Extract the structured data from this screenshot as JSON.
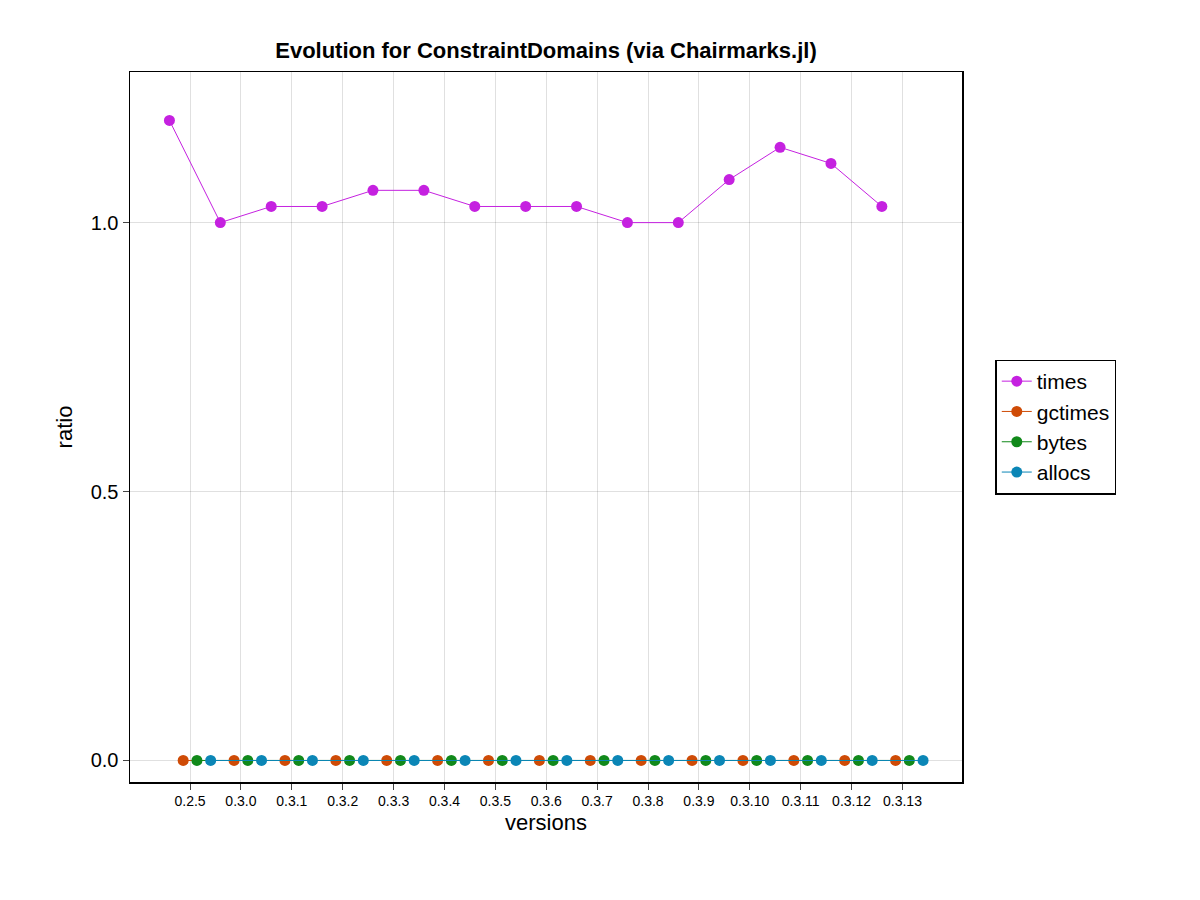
{
  "chart_data": {
    "type": "line",
    "title": "Evolution for ConstraintDomains (via Chairmarks.jl)",
    "x_label": "versions",
    "y_label": "ratio",
    "categories": [
      "0.2.5",
      "0.3.0",
      "0.3.1",
      "0.3.2",
      "0.3.3",
      "0.3.4",
      "0.3.5",
      "0.3.6",
      "0.3.7",
      "0.3.8",
      "0.3.9",
      "0.3.10",
      "0.3.11",
      "0.3.12",
      "0.3.13"
    ],
    "series": [
      {
        "name": "times",
        "color": "#c521e0",
        "values": [
          1.19,
          1.0,
          1.03,
          1.03,
          1.06,
          1.06,
          1.03,
          1.03,
          1.03,
          1.0,
          1.0,
          1.08,
          1.14,
          1.11,
          1.03
        ]
      },
      {
        "name": "gctimes",
        "color": "#cf4b06",
        "values": [
          0,
          0,
          0,
          0,
          0,
          0,
          0,
          0,
          0,
          0,
          0,
          0,
          0,
          0,
          0
        ]
      },
      {
        "name": "bytes",
        "color": "#11891a",
        "values": [
          0,
          0,
          0,
          0,
          0,
          0,
          0,
          0,
          0,
          0,
          0,
          0,
          0,
          0,
          0
        ]
      },
      {
        "name": "allocs",
        "color": "#0b86b6",
        "values": [
          0,
          0,
          0,
          0,
          0,
          0,
          0,
          0,
          0,
          0,
          0,
          0,
          0,
          0,
          0
        ]
      }
    ],
    "ylim": [
      -0.04,
      1.28
    ],
    "yticks": [
      {
        "value": 0,
        "label": "0.0"
      },
      0.5,
      {
        "value": 1,
        "label": "1.0"
      }
    ],
    "grid": true,
    "legend": "right",
    "marker": "circle",
    "line_style": "solid"
  }
}
